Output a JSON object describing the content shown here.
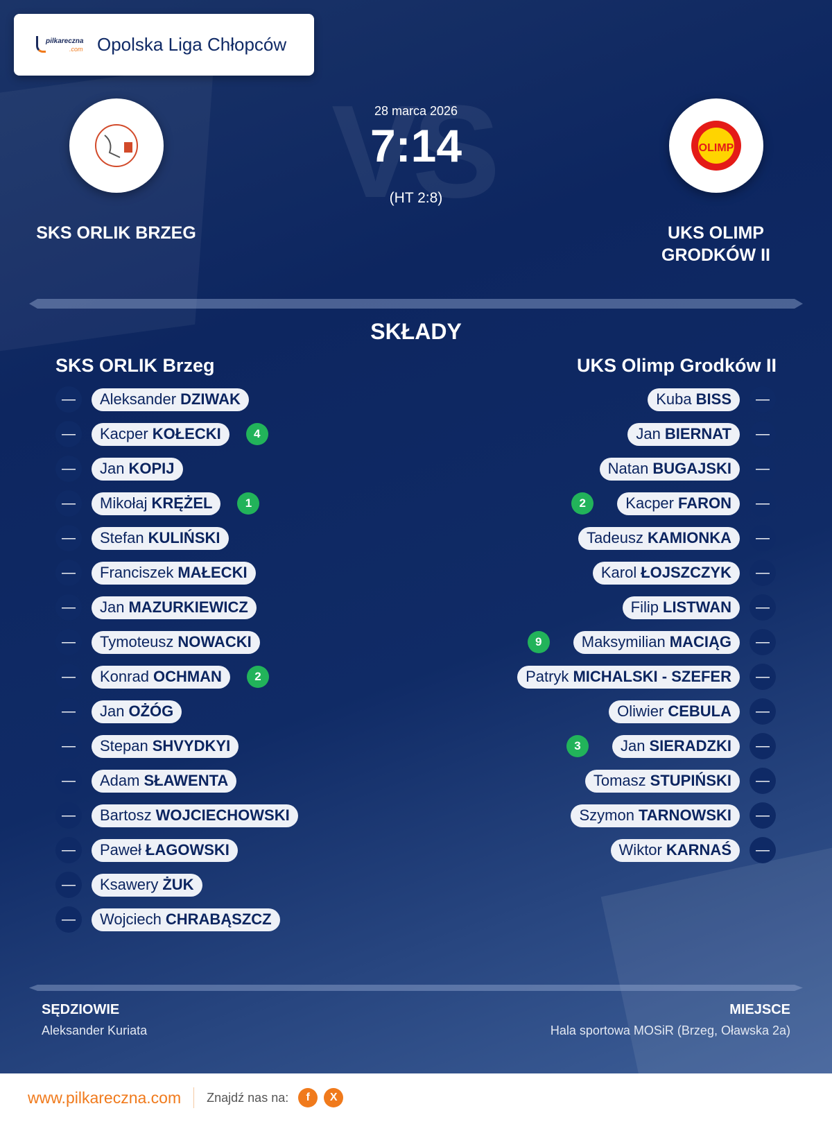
{
  "header": {
    "league": "Opolska Liga Chłopców",
    "brand_logo_text": "pilkareczna.com"
  },
  "match": {
    "date": "28 marca 2026",
    "score": "7:14",
    "halftime": "(HT 2:8)",
    "vs_watermark": "VS",
    "home": {
      "name": "SKS ORLIK BRZEG",
      "logo_text": "SKS ORLIK BRZEG"
    },
    "away": {
      "name_line1": "UKS OLIMP",
      "name_line2": "GRODKÓW II",
      "logo_text": "OLIMP"
    }
  },
  "lineups": {
    "title": "SKŁADY",
    "home": {
      "team": "SKS ORLIK Brzeg",
      "players": [
        {
          "first": "Aleksander",
          "last": "DZIWAK",
          "number": "—",
          "goals": null
        },
        {
          "first": "Kacper",
          "last": "KOŁECKI",
          "number": "—",
          "goals": "4"
        },
        {
          "first": "Jan",
          "last": "KOPIJ",
          "number": "—",
          "goals": null
        },
        {
          "first": "Mikołaj",
          "last": "KRĘŻEL",
          "number": "—",
          "goals": "1"
        },
        {
          "first": "Stefan",
          "last": "KULIŃSKI",
          "number": "—",
          "goals": null
        },
        {
          "first": "Franciszek",
          "last": "MAŁECKI",
          "number": "—",
          "goals": null
        },
        {
          "first": "Jan",
          "last": "MAZURKIEWICZ",
          "number": "—",
          "goals": null
        },
        {
          "first": "Tymoteusz",
          "last": "NOWACKI",
          "number": "—",
          "goals": null
        },
        {
          "first": "Konrad",
          "last": "OCHMAN",
          "number": "—",
          "goals": "2"
        },
        {
          "first": "Jan",
          "last": "OŻÓG",
          "number": "—",
          "goals": null
        },
        {
          "first": "Stepan",
          "last": "SHVYDKYI",
          "number": "—",
          "goals": null
        },
        {
          "first": "Adam",
          "last": "SŁAWENTA",
          "number": "—",
          "goals": null
        },
        {
          "first": "Bartosz",
          "last": "WOJCIECHOWSKI",
          "number": "—",
          "goals": null
        },
        {
          "first": "Paweł",
          "last": "ŁAGOWSKI",
          "number": "—",
          "goals": null
        },
        {
          "first": "Ksawery",
          "last": "ŻUK",
          "number": "—",
          "goals": null
        },
        {
          "first": "Wojciech",
          "last": "CHRABĄSZCZ",
          "number": "—",
          "goals": null
        }
      ]
    },
    "away": {
      "team": "UKS Olimp Grodków II",
      "players": [
        {
          "first": "Kuba",
          "last": "BISS",
          "number": "—",
          "goals": null
        },
        {
          "first": "Jan",
          "last": "BIERNAT",
          "number": "—",
          "goals": null
        },
        {
          "first": "Natan",
          "last": "BUGAJSKI",
          "number": "—",
          "goals": null
        },
        {
          "first": "Kacper",
          "last": "FARON",
          "number": "—",
          "goals": "2"
        },
        {
          "first": "Tadeusz",
          "last": "KAMIONKA",
          "number": "—",
          "goals": null
        },
        {
          "first": "Karol",
          "last": "ŁOJSZCZYK",
          "number": "—",
          "goals": null
        },
        {
          "first": "Filip",
          "last": "LISTWAN",
          "number": "—",
          "goals": null
        },
        {
          "first": "Maksymilian",
          "last": "MACIĄG",
          "number": "—",
          "goals": "9"
        },
        {
          "first": "Patryk",
          "last": "MICHALSKI - SZEFER",
          "number": "—",
          "goals": null
        },
        {
          "first": "Oliwier",
          "last": "CEBULA",
          "number": "—",
          "goals": null
        },
        {
          "first": "Jan",
          "last": "SIERADZKI",
          "number": "—",
          "goals": "3"
        },
        {
          "first": "Tomasz",
          "last": "STUPIŃSKI",
          "number": "—",
          "goals": null
        },
        {
          "first": "Szymon",
          "last": "TARNOWSKI",
          "number": "—",
          "goals": null
        },
        {
          "first": "Wiktor",
          "last": "KARNAŚ",
          "number": "—",
          "goals": null
        }
      ]
    }
  },
  "info": {
    "referees_label": "SĘDZIOWIE",
    "referees": "Aleksander Kuriata",
    "venue_label": "MIEJSCE",
    "venue": "Hala sportowa MOSiR (Brzeg, Oławska 2a)"
  },
  "footer": {
    "site": "www.pilkareczna.com",
    "find_us": "Znajdź nas na:",
    "facebook": "f",
    "x": "X"
  },
  "colors": {
    "navy": "#0c2560",
    "accent": "#f07a1c",
    "goal_badge": "#22b35a"
  }
}
